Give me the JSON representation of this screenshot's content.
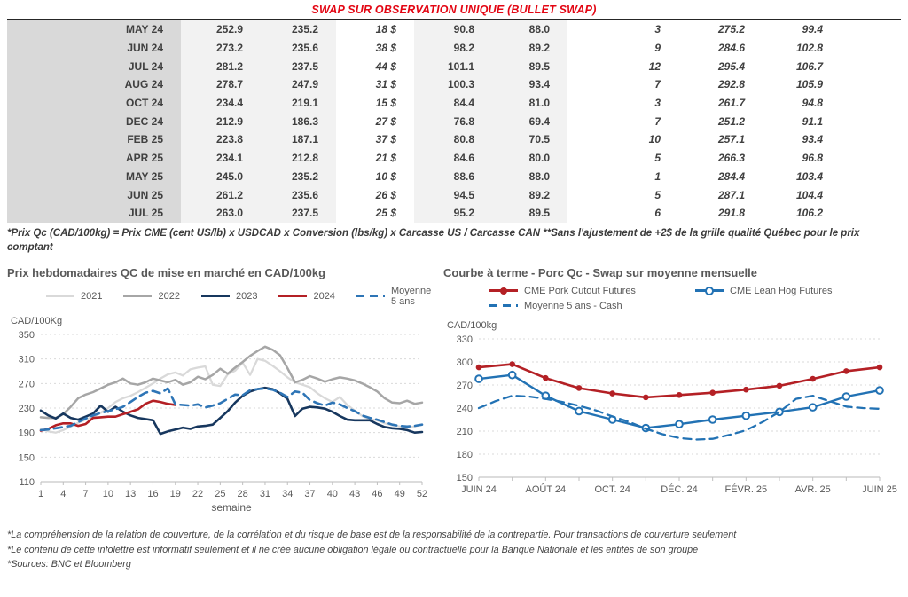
{
  "title": "SWAP SUR OBSERVATION UNIQUE (BULLET SWAP)",
  "colors": {
    "title_red": "#e30613",
    "green": "#00b050",
    "blue": "#1f5f8b",
    "text_dark": "#404040"
  },
  "table": {
    "rows": [
      [
        "MAY 24",
        "252.9",
        "235.2",
        "18 $",
        "90.8",
        "88.0",
        "3",
        "275.2",
        "99.4"
      ],
      [
        "JUN 24",
        "273.2",
        "235.6",
        "38 $",
        "98.2",
        "89.2",
        "9",
        "284.6",
        "102.8"
      ],
      [
        "JUL 24",
        "281.2",
        "237.5",
        "44 $",
        "101.1",
        "89.5",
        "12",
        "295.4",
        "106.7"
      ],
      [
        "AUG 24",
        "278.7",
        "247.9",
        "31 $",
        "100.3",
        "93.4",
        "7",
        "292.8",
        "105.9"
      ],
      [
        "OCT 24",
        "234.4",
        "219.1",
        "15 $",
        "84.4",
        "81.0",
        "3",
        "261.7",
        "94.8"
      ],
      [
        "DEC 24",
        "212.9",
        "186.3",
        "27 $",
        "76.8",
        "69.4",
        "7",
        "251.2",
        "91.1"
      ],
      [
        "FEB 25",
        "223.8",
        "187.1",
        "37 $",
        "80.8",
        "70.5",
        "10",
        "257.1",
        "93.4"
      ],
      [
        "APR 25",
        "234.1",
        "212.8",
        "21 $",
        "84.6",
        "80.0",
        "5",
        "266.3",
        "96.8"
      ],
      [
        "MAY 25",
        "245.0",
        "235.2",
        "10 $",
        "88.6",
        "88.0",
        "1",
        "284.4",
        "103.4"
      ],
      [
        "JUN 25",
        "261.2",
        "235.6",
        "26 $",
        "94.5",
        "89.2",
        "5",
        "287.1",
        "104.4"
      ],
      [
        "JUL 25",
        "263.0",
        "237.5",
        "25 $",
        "95.2",
        "89.5",
        "6",
        "291.8",
        "106.2"
      ]
    ]
  },
  "table_footnote": "*Prix Qc (CAD/100kg) = Prix CME (cent US/lb) x USDCAD x Conversion (lbs/kg) x Carcasse US / Carcasse CAN **Sans l'ajustement de +2$ de la grille qualité Québec pour le prix comptant",
  "chart_data": [
    {
      "type": "line",
      "title": "Prix hebdomadaires QC de mise en marché en CAD/100kg",
      "ylabel": "CAD/100Kg",
      "xlabel": "semaine",
      "ylim": [
        110,
        350
      ],
      "yticks": [
        110,
        150,
        190,
        230,
        270,
        310,
        350
      ],
      "x_range": [
        1,
        52
      ],
      "xtick_positions": [
        1,
        4,
        7,
        10,
        13,
        16,
        19,
        22,
        25,
        28,
        31,
        34,
        37,
        40,
        43,
        46,
        49,
        52
      ],
      "xtick_labels": [
        "1",
        "4",
        "7",
        "10",
        "13",
        "16",
        "19",
        "22",
        "25",
        "28",
        "31",
        "34",
        "37",
        "40",
        "43",
        "46",
        "49",
        "52"
      ],
      "grid": true,
      "legend_rows": [
        [
          0,
          1,
          2,
          3,
          4
        ]
      ],
      "series": [
        {
          "name": "2021",
          "color": "#d9d9d9",
          "style": "solid",
          "width": 2.3,
          "x_start": 1,
          "values": [
            196,
            192,
            190,
            194,
            200,
            206,
            211,
            216,
            222,
            230,
            240,
            246,
            250,
            256,
            263,
            270,
            278,
            285,
            288,
            283,
            293,
            296,
            298,
            268,
            266,
            285,
            291,
            304,
            284,
            310,
            307,
            299,
            290,
            280,
            272,
            268,
            264,
            254,
            246,
            240,
            248,
            235,
            226,
            217,
            212,
            210,
            205,
            202,
            200,
            198,
            200,
            203
          ]
        },
        {
          "name": "2022",
          "color": "#a6a6a6",
          "style": "solid",
          "width": 2.5,
          "x_start": 1,
          "values": [
            215,
            214,
            214,
            220,
            232,
            246,
            252,
            256,
            262,
            268,
            272,
            278,
            270,
            268,
            272,
            278,
            275,
            272,
            276,
            268,
            272,
            281,
            277,
            284,
            294,
            286,
            296,
            305,
            315,
            323,
            330,
            325,
            316,
            295,
            272,
            276,
            282,
            278,
            273,
            277,
            280,
            278,
            275,
            270,
            264,
            257,
            246,
            239,
            238,
            242,
            237,
            239
          ]
        },
        {
          "name": "2023",
          "color": "#17375e",
          "style": "solid",
          "width": 2.6,
          "x_start": 1,
          "values": [
            226,
            218,
            213,
            221,
            214,
            211,
            216,
            221,
            234,
            224,
            232,
            224,
            218,
            214,
            212,
            210,
            188,
            192,
            195,
            198,
            196,
            200,
            201,
            203,
            214,
            225,
            239,
            250,
            257,
            261,
            263,
            261,
            254,
            245,
            217,
            229,
            232,
            231,
            229,
            224,
            217,
            211,
            210,
            210,
            210,
            204,
            199,
            197,
            196,
            194,
            190,
            191
          ]
        },
        {
          "name": "2024",
          "color": "#b42025",
          "style": "solid",
          "width": 2.6,
          "x_start": 1,
          "values": [
            193,
            196,
            202,
            205,
            205,
            201,
            204,
            214,
            215,
            216,
            216,
            220,
            224,
            228,
            237,
            242,
            240,
            237,
            235
          ]
        },
        {
          "name": "Moyenne 5 ans",
          "color": "#2e75b6",
          "style": "dashed",
          "width": 2.6,
          "x_start": 1,
          "values": [
            194,
            195,
            197,
            199,
            201,
            207,
            213,
            218,
            222,
            225,
            228,
            232,
            240,
            248,
            255,
            258,
            254,
            262,
            236,
            235,
            234,
            236,
            231,
            234,
            238,
            245,
            252,
            251,
            259,
            261,
            262,
            260,
            255,
            248,
            257,
            255,
            243,
            238,
            234,
            239,
            236,
            230,
            225,
            218,
            214,
            211,
            207,
            203,
            201,
            200,
            201,
            203
          ]
        }
      ]
    },
    {
      "type": "line",
      "title": "Courbe à terme - Porc Qc - Swap sur moyenne mensuelle",
      "ylabel": "CAD/100kg",
      "xlabel": "",
      "ylim": [
        150,
        330
      ],
      "yticks": [
        150,
        180,
        210,
        240,
        270,
        300,
        330
      ],
      "x_range": [
        0,
        12
      ],
      "xtick_positions": [
        0,
        2,
        4,
        6,
        8,
        10,
        12
      ],
      "xtick_labels": [
        "JUIN 24",
        "AOÛT 24",
        "OCT. 24",
        "DÉC. 24",
        "FÉVR. 25",
        "AVR. 25",
        "JUIN 25"
      ],
      "xtick_marks": [
        0,
        1,
        2,
        3,
        4,
        5,
        6,
        7,
        8,
        9,
        10,
        11,
        12
      ],
      "grid": true,
      "legend_rows": [
        [
          0,
          1
        ],
        [
          2
        ]
      ],
      "series": [
        {
          "name": "CME Pork Cutout Futures",
          "color": "#b42025",
          "style": "solid",
          "width": 2.6,
          "marker": "filled",
          "x_start": 0,
          "values": [
            293,
            297,
            279,
            266,
            259,
            254,
            257,
            260,
            264,
            269,
            278,
            288,
            293
          ]
        },
        {
          "name": "CME Lean Hog Futures",
          "color": "#2272b4",
          "style": "solid",
          "width": 2.4,
          "marker": "open",
          "x_start": 0,
          "values": [
            278,
            283,
            256,
            236,
            225,
            214,
            219,
            225,
            230,
            235,
            241,
            255,
            263
          ]
        },
        {
          "name": "Moyenne 5 ans - Cash",
          "color": "#2272b4",
          "style": "dashed",
          "width": 2.3,
          "x_start": 0,
          "x_step": 0.5,
          "values": [
            240,
            249,
            256,
            255,
            252,
            248,
            243,
            237,
            229,
            222,
            213,
            206,
            201,
            199,
            200,
            205,
            211,
            222,
            235,
            252,
            256,
            249,
            242,
            240,
            239
          ]
        }
      ]
    }
  ],
  "footnotes": [
    "*La compréhension de la relation de couverture, de la corrélation et du risque de base est de la responsabilité de la contrepartie. Pour transactions de couverture seulement",
    "*Le contenu de cette infolettre est informatif seulement et il ne crée aucune obligation légale ou contractuelle pour la Banque Nationale et les entités de son groupe",
    "*Sources: BNC et Bloomberg"
  ]
}
